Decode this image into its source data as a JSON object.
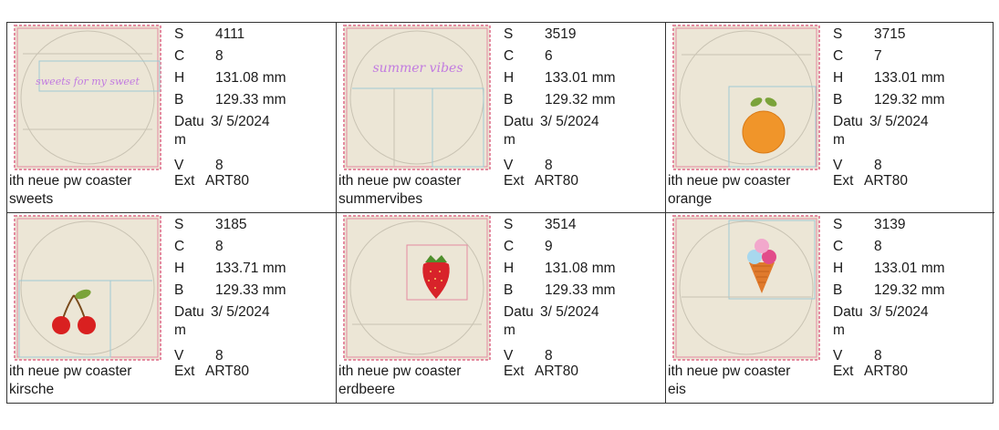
{
  "labels": {
    "s": "S",
    "c": "C",
    "h": "H",
    "b": "B",
    "datum": "Datu",
    "datum_wrap": "m",
    "v": "V",
    "ext": "Ext"
  },
  "designs": [
    {
      "stitches": "4111",
      "colors": "8",
      "height": "131.08 mm",
      "width": "129.33 mm",
      "date": "3/ 5/2024",
      "version": "8",
      "ext": "ART80",
      "name": "ith neue pw coaster",
      "variant": "sweets",
      "motif": "text",
      "motif_text": "sweets for my sweet",
      "motif_color": "#c27be0"
    },
    {
      "stitches": "3519",
      "colors": "6",
      "height": "133.01 mm",
      "width": "129.32 mm",
      "date": "3/ 5/2024",
      "version": "8",
      "ext": "ART80",
      "name": "ith neue pw coaster",
      "variant": "summervibes",
      "motif": "text",
      "motif_text": "summer vibes",
      "motif_color": "#c27be0"
    },
    {
      "stitches": "3715",
      "colors": "7",
      "height": "133.01 mm",
      "width": "129.32 mm",
      "date": "3/ 5/2024",
      "version": "8",
      "ext": "ART80",
      "name": "ith neue pw coaster",
      "variant": "orange",
      "motif": "orange-icon",
      "motif_color": "#f0952a"
    },
    {
      "stitches": "3185",
      "colors": "8",
      "height": "133.71 mm",
      "width": "129.33 mm",
      "date": "3/ 5/2024",
      "version": "8",
      "ext": "ART80",
      "name": "ith neue pw coaster",
      "variant": "kirsche",
      "motif": "cherry-icon",
      "motif_color": "#d92020"
    },
    {
      "stitches": "3514",
      "colors": "9",
      "height": "131.08 mm",
      "width": "129.33 mm",
      "date": "3/ 5/2024",
      "version": "8",
      "ext": "ART80",
      "name": "ith neue pw coaster",
      "variant": "erdbeere",
      "motif": "strawberry-icon",
      "motif_color": "#d8232a"
    },
    {
      "stitches": "3139",
      "colors": "8",
      "height": "133.01 mm",
      "width": "129.32 mm",
      "date": "3/ 5/2024",
      "version": "8",
      "ext": "ART80",
      "name": "ith neue pw coaster",
      "variant": "eis",
      "motif": "ice-cream-icon",
      "motif_color": "#e07a2c"
    }
  ],
  "colors": {
    "fabric": "#ece6d6",
    "border_stitch": "#e48aa0",
    "guide": "#9fc9d4",
    "circle": "#c9c3b3",
    "grid_line": "#333333"
  }
}
